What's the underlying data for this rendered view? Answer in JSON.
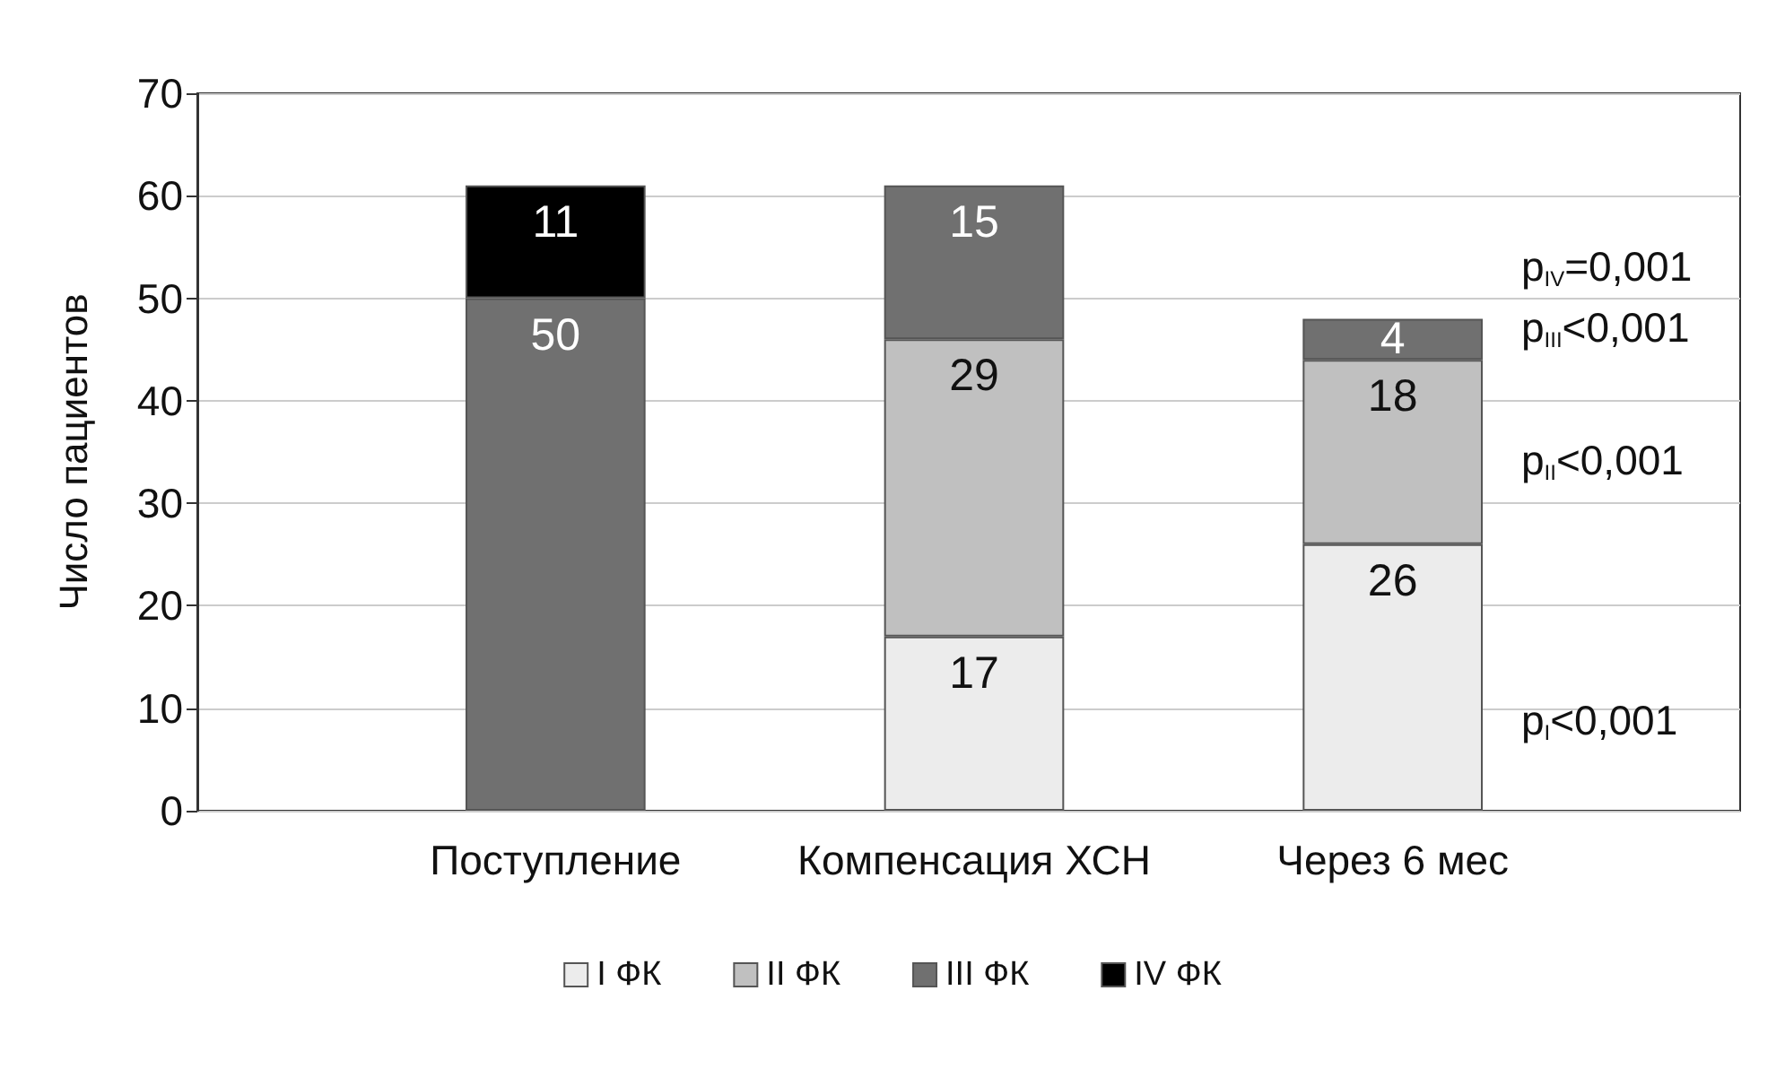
{
  "chart_data": {
    "type": "bar",
    "stacked": true,
    "ylabel": "Число пациентов",
    "categories": [
      "Поступление",
      "Компенсация ХСН",
      "Через 6 мес"
    ],
    "series": [
      {
        "name": "I ФК",
        "color": "#ececec",
        "values": [
          null,
          17,
          26
        ]
      },
      {
        "name": "II ФК",
        "color": "#c0c0c0",
        "values": [
          null,
          29,
          18
        ]
      },
      {
        "name": "III ФК",
        "color": "#707070",
        "values": [
          50,
          15,
          4
        ]
      },
      {
        "name": "IV ФК",
        "color": "#000000",
        "values": [
          11,
          null,
          null
        ]
      }
    ],
    "ylim": [
      0,
      70
    ],
    "yticks": [
      0,
      10,
      20,
      30,
      40,
      50,
      60,
      70
    ],
    "grid": "y",
    "legend": "bottom",
    "data_labels": true,
    "annotations": [
      "p$_{IV}$=0,001",
      "p$_{III}$<0,001",
      "p$_{II}$<0,001",
      "p$_{I}$<0,001"
    ]
  }
}
